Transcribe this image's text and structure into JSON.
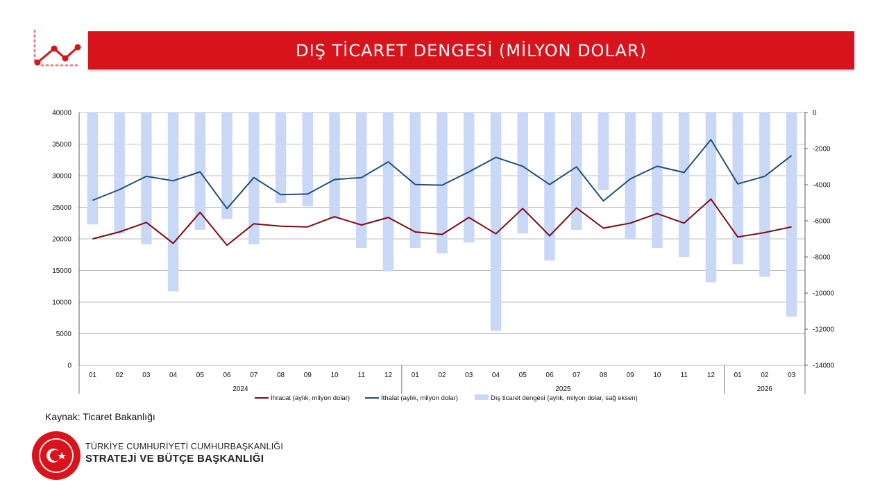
{
  "header": {
    "title": "DIŞ TİCARET DENGESİ (MİLYON DOLAR)"
  },
  "source": "Kaynak: Ticaret Bakanlığı",
  "org": {
    "line1": "TÜRKİYE CUMHURİYETİ CUMHURBAŞKANLIĞI",
    "line2": "STRATEJİ VE BÜTÇE BAŞKANLIĞI"
  },
  "logo_text": "T.C. CUMHURBAŞKANLIĞI STRATEJİ VE BÜTÇE BAŞKANLIĞI",
  "colors": {
    "brand_red": "#d7131c",
    "export": "#7b0c12",
    "import": "#1f4e79",
    "balance": "#cad8f7",
    "grid": "#a6a6a6"
  },
  "chart_data": {
    "type": "bar",
    "categories": [
      "01",
      "02",
      "03",
      "04",
      "05",
      "06",
      "07",
      "08",
      "09",
      "10",
      "11",
      "12",
      "01",
      "02",
      "03",
      "04",
      "05",
      "06",
      "07",
      "08",
      "09",
      "10",
      "11",
      "12",
      "01",
      "02",
      "03"
    ],
    "year_groups": [
      {
        "label": "2024",
        "count": 12
      },
      {
        "label": "2025",
        "count": 12
      },
      {
        "label": "2026",
        "count": 3
      }
    ],
    "series": [
      {
        "name": "İhracat (aylık, milyon dolar)",
        "kind": "line",
        "axis": "left",
        "values": [
          20000,
          21100,
          22600,
          19300,
          24200,
          19000,
          22400,
          22000,
          21900,
          23500,
          22200,
          23400,
          21100,
          20700,
          23400,
          20800,
          24800,
          20500,
          24900,
          21700,
          22500,
          24000,
          22500,
          26300,
          20300,
          21000,
          21900
        ]
      },
      {
        "name": "İthalat (aylık, milyon dolar)",
        "kind": "line",
        "axis": "left",
        "values": [
          26100,
          27800,
          29900,
          29200,
          30600,
          24800,
          29700,
          27000,
          27100,
          29400,
          29700,
          32200,
          28600,
          28500,
          30600,
          32900,
          31500,
          28600,
          31400,
          26000,
          29500,
          31500,
          30500,
          35700,
          28700,
          29900,
          33200
        ]
      },
      {
        "name": "Dış ticaret dengesi (aylık, milyon dolar, sağ eksen)",
        "kind": "bar",
        "axis": "right",
        "values": [
          -6200,
          -6700,
          -7300,
          -9900,
          -6500,
          -5900,
          -7300,
          -5000,
          -5200,
          -5900,
          -7500,
          -8800,
          -7500,
          -7800,
          -7200,
          -12100,
          -6700,
          -8200,
          -6500,
          -4300,
          -7000,
          -7500,
          -8000,
          -9400,
          -8400,
          -9100,
          -11300
        ]
      }
    ],
    "left_axis": {
      "min": 0,
      "max": 40000,
      "ticks": [
        "0",
        "5000",
        "10000",
        "15000",
        "20000",
        "25000",
        "30000",
        "35000",
        "40000"
      ]
    },
    "right_axis": {
      "min": -14000,
      "max": 0,
      "ticks": [
        "-14000",
        "-12000",
        "-10000",
        "-8000",
        "-6000",
        "-4000",
        "-2000",
        "0"
      ]
    },
    "grid": true,
    "legend_position": "bottom"
  }
}
